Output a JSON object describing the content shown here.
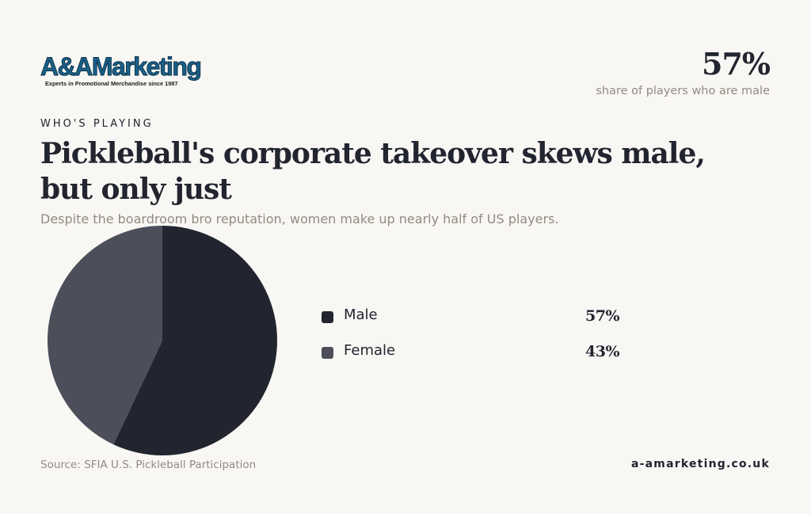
{
  "brand": {
    "logo_text": "A&AMarketing",
    "tagline": "Experts in Promotional Merchandise since 1987",
    "website": "a-amarketing.co.uk"
  },
  "kpi": {
    "value": "57%",
    "caption": "share of players who are male"
  },
  "header": {
    "eyebrow": "WHO'S PLAYING",
    "title": "Pickleball's corporate takeover skews male, but only just",
    "subtitle": "Despite the boardroom bro reputation, women make up nearly half of US players."
  },
  "footer": {
    "source": "Source: SFIA U.S. Pickleball Participation"
  },
  "colors": {
    "background": "#f8f7f4",
    "ink": "#22252f",
    "muted": "#938b82",
    "male": "#22252f",
    "female": "#4c4f5a"
  },
  "chart_data": {
    "type": "pie",
    "categories": [
      "Male",
      "Female"
    ],
    "values": [
      57,
      43
    ],
    "value_labels": [
      "57%",
      "43%"
    ],
    "colors": [
      "#22252f",
      "#4c4f5a"
    ],
    "start_angle": "12 o'clock",
    "direction": "clockwise",
    "legend_position": "right"
  }
}
